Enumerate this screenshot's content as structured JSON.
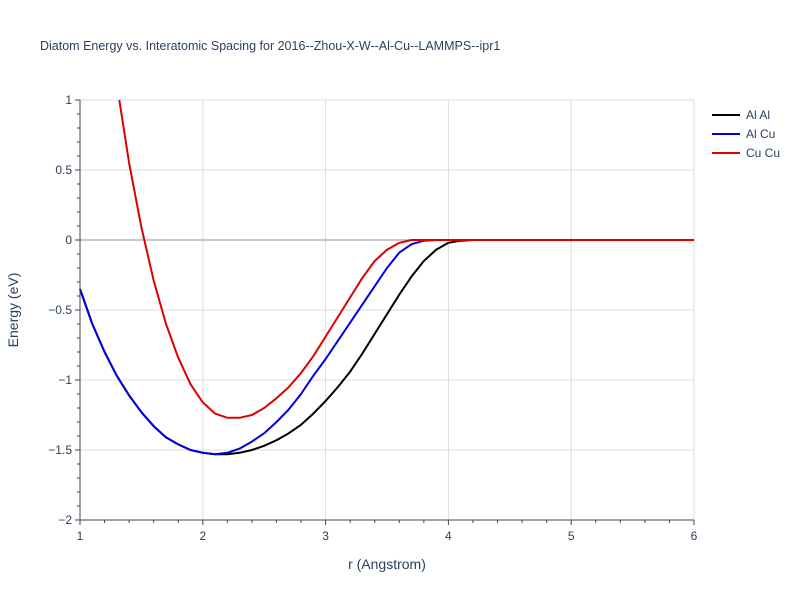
{
  "chart_data": {
    "type": "line",
    "title": "Diatom Energy vs. Interatomic Spacing for 2016--Zhou-X-W--Al-Cu--LAMMPS--ipr1",
    "xlabel": "r (Angstrom)",
    "ylabel": "Energy (eV)",
    "xlim": [
      1,
      6
    ],
    "ylim": [
      -2,
      1
    ],
    "x_ticks": [
      1,
      2,
      3,
      4,
      5,
      6
    ],
    "x_tick_labels": [
      "1",
      "2",
      "3",
      "4",
      "5",
      "6"
    ],
    "y_ticks": [
      -2,
      -1.5,
      -1,
      -0.5,
      0,
      0.5,
      1
    ],
    "y_tick_labels": [
      "−2",
      "−1.5",
      "−1",
      "−0.5",
      "0",
      "0.5",
      "1"
    ],
    "grid": true,
    "legend_position": "top-right",
    "series": [
      {
        "name": "Al Al",
        "color": "#000000",
        "x": [
          1.0,
          1.1,
          1.2,
          1.3,
          1.4,
          1.5,
          1.6,
          1.7,
          1.8,
          1.9,
          2.0,
          2.1,
          2.2,
          2.3,
          2.4,
          2.5,
          2.6,
          2.7,
          2.8,
          2.9,
          3.0,
          3.1,
          3.2,
          3.3,
          3.4,
          3.5,
          3.6,
          3.7,
          3.8,
          3.9,
          4.0,
          4.1,
          4.2,
          4.3,
          4.5,
          5.0,
          5.5,
          6.0
        ],
        "y": [
          -0.35,
          -0.6,
          -0.8,
          -0.97,
          -1.11,
          -1.23,
          -1.33,
          -1.41,
          -1.46,
          -1.5,
          -1.52,
          -1.53,
          -1.53,
          -1.52,
          -1.5,
          -1.47,
          -1.43,
          -1.38,
          -1.32,
          -1.24,
          -1.15,
          -1.05,
          -0.94,
          -0.81,
          -0.67,
          -0.53,
          -0.39,
          -0.26,
          -0.15,
          -0.07,
          -0.02,
          -0.005,
          0,
          0,
          0,
          0,
          0,
          0
        ]
      },
      {
        "name": "Al Cu",
        "color": "#0000dd",
        "x": [
          1.0,
          1.1,
          1.2,
          1.3,
          1.4,
          1.5,
          1.6,
          1.7,
          1.8,
          1.9,
          2.0,
          2.1,
          2.2,
          2.3,
          2.4,
          2.5,
          2.6,
          2.7,
          2.8,
          2.9,
          3.0,
          3.1,
          3.2,
          3.3,
          3.4,
          3.5,
          3.6,
          3.7,
          3.8,
          3.9,
          4.0,
          4.1,
          4.5,
          5.0,
          5.5,
          6.0
        ],
        "y": [
          -0.35,
          -0.6,
          -0.8,
          -0.97,
          -1.11,
          -1.23,
          -1.33,
          -1.41,
          -1.46,
          -1.5,
          -1.52,
          -1.53,
          -1.52,
          -1.49,
          -1.44,
          -1.38,
          -1.3,
          -1.21,
          -1.1,
          -0.97,
          -0.85,
          -0.72,
          -0.59,
          -0.46,
          -0.33,
          -0.2,
          -0.09,
          -0.03,
          -0.005,
          0,
          0,
          0,
          0,
          0,
          0,
          0
        ]
      },
      {
        "name": "Cu Cu",
        "color": "#dd0000",
        "x": [
          1.32,
          1.4,
          1.5,
          1.6,
          1.7,
          1.8,
          1.9,
          2.0,
          2.1,
          2.2,
          2.3,
          2.4,
          2.5,
          2.6,
          2.7,
          2.8,
          2.9,
          3.0,
          3.1,
          3.2,
          3.3,
          3.4,
          3.5,
          3.6,
          3.7,
          3.8,
          3.9,
          4.0,
          4.5,
          5.0,
          5.5,
          6.0
        ],
        "y": [
          1.0,
          0.55,
          0.09,
          -0.29,
          -0.6,
          -0.84,
          -1.03,
          -1.16,
          -1.24,
          -1.27,
          -1.27,
          -1.25,
          -1.2,
          -1.13,
          -1.05,
          -0.95,
          -0.83,
          -0.69,
          -0.55,
          -0.41,
          -0.27,
          -0.15,
          -0.07,
          -0.02,
          0,
          0,
          0,
          0,
          0,
          0,
          0,
          0
        ]
      }
    ]
  }
}
